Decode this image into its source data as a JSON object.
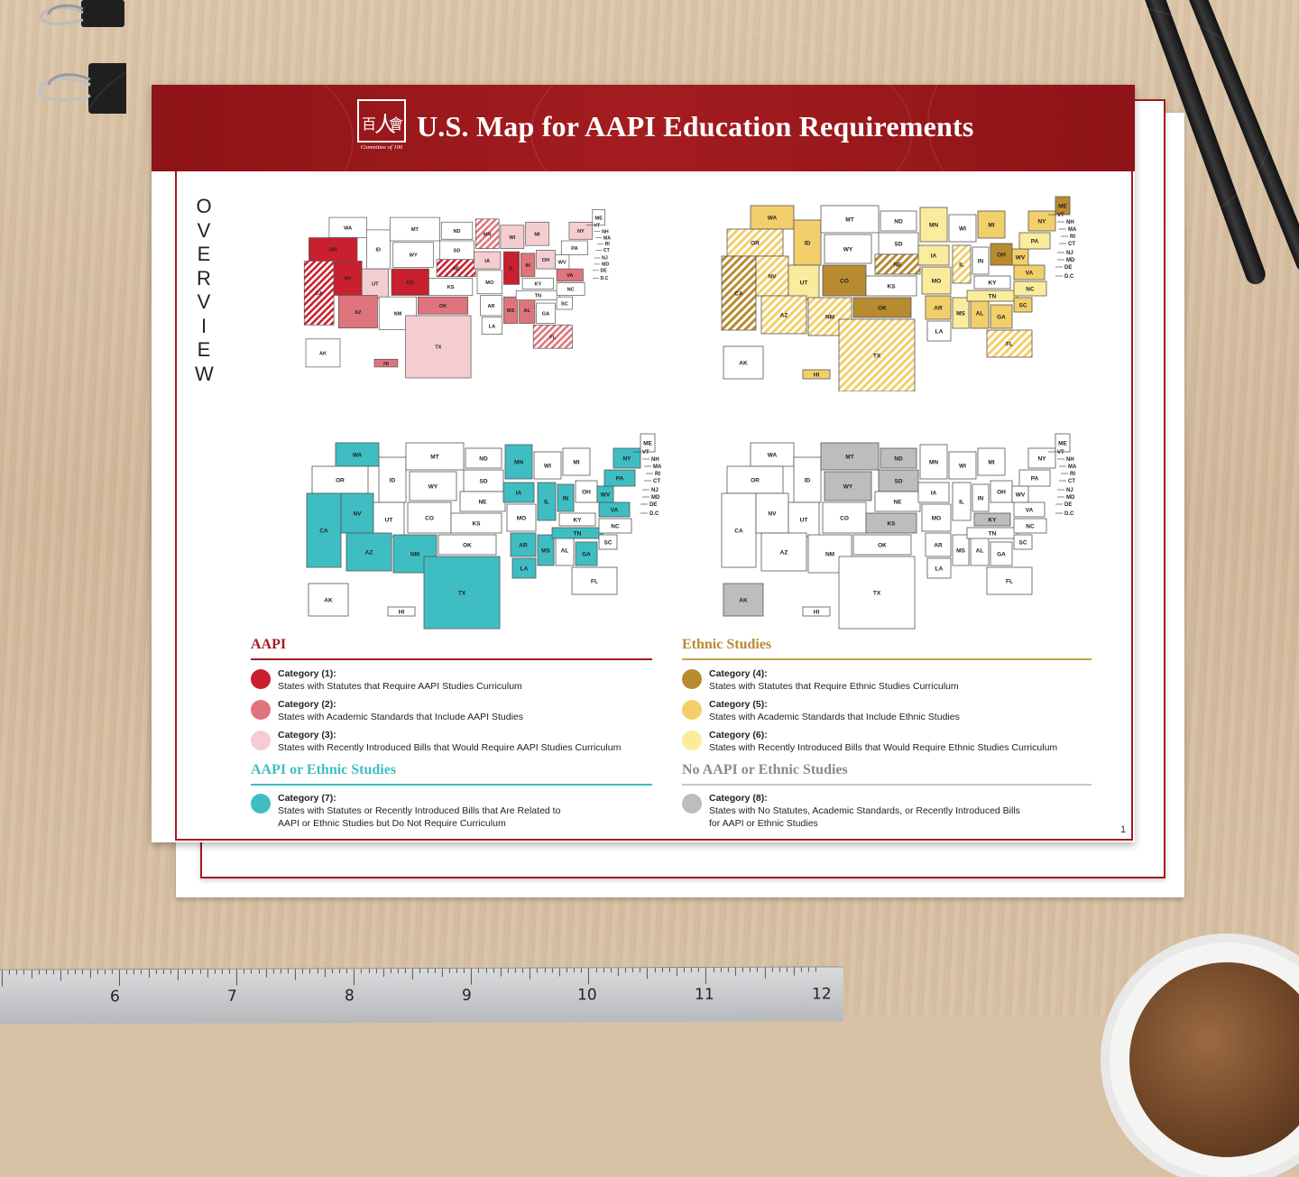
{
  "title": "U.S. Map for AAPI Education Requirements",
  "org_caption": "Committee of 100",
  "side_label": [
    "O",
    "V",
    "E",
    "R",
    "V",
    "I",
    "E",
    "W"
  ],
  "page_number": "1",
  "colors": {
    "brand": "#a31c20",
    "cat1": "#c8202e",
    "cat2": "#df747c",
    "cat3": "#f4cdd0",
    "cat4": "#b98b30",
    "cat5": "#f3cf6b",
    "cat6": "#fbeb9c",
    "cat7": "#3ebec2",
    "cat8": "#bdbdbd"
  },
  "legend": {
    "aapi": {
      "heading": "AAPI",
      "items": [
        {
          "head": "Category (1):",
          "text": "States with Statutes that Require AAPI Studies Curriculum"
        },
        {
          "head": "Category (2):",
          "text": "States with Academic Standards that Include AAPI Studies"
        },
        {
          "head": "Category (3):",
          "text": "States with Recently Introduced Bills that Would Require AAPI Studies Curriculum"
        }
      ]
    },
    "aapi_or_ethnic": {
      "heading": "AAPI or Ethnic Studies",
      "items": [
        {
          "head": "Category (7):",
          "text": "States with Statutes or Recently Introduced Bills that Are Related to",
          "text2": "AAPI or Ethnic Studies but Do Not Require Curriculum"
        }
      ]
    },
    "ethnic": {
      "heading": "Ethnic Studies",
      "items": [
        {
          "head": "Category (4):",
          "text": "States with Statutes that Require Ethnic Studies Curriculum"
        },
        {
          "head": "Category (5):",
          "text": "States with Academic Standards that Include Ethnic Studies"
        },
        {
          "head": "Category (6):",
          "text": "States with Recently Introduced Bills that Would Require Ethnic Studies Curriculum"
        }
      ]
    },
    "none": {
      "heading": "No AAPI or Ethnic Studies",
      "items": [
        {
          "head": "Category (8):",
          "text": "States with No Statutes, Academic Standards, or Recently Introduced Bills",
          "text2": "for AAPI or Ethnic Studies"
        }
      ]
    }
  },
  "ruler_numbers": [
    "6",
    "7",
    "8",
    "9",
    "10",
    "11",
    "12"
  ],
  "maps": [
    {
      "name": "aapi-map",
      "fills": {
        "WA": "#fff",
        "OR": "cat1",
        "CA": "cat1s",
        "NV": "cat1",
        "ID": "#fff",
        "MT": "#fff",
        "WY": "#fff",
        "UT": "cat3",
        "CO": "cat1",
        "AZ": "cat2",
        "NM": "#fff",
        "ND": "#fff",
        "SD": "#fff",
        "NE": "cat1s",
        "KS": "#fff",
        "OK": "cat2",
        "TX": "cat3",
        "MN": "cat2s",
        "IA": "cat3",
        "MO": "#fff",
        "AR": "#fff",
        "LA": "#fff",
        "WI": "cat3",
        "IL": "cat1",
        "MS": "cat2",
        "AL": "cat2",
        "MI": "cat3",
        "IN": "cat2",
        "OH": "cat3",
        "KY": "#fff",
        "TN": "#fff",
        "GA": "#fff",
        "FL": "cat2s",
        "SC": "#fff",
        "NC": "#fff",
        "VA": "cat2",
        "WV": "#fff",
        "PA": "#fff",
        "NY": "cat3",
        "ME": "#fff",
        "AK": "#fff",
        "HI": "cat2"
      }
    },
    {
      "name": "ethnic-map",
      "fills": {
        "WA": "cat5",
        "OR": "cat5s",
        "CA": "cat4s",
        "NV": "cat5s",
        "ID": "cat5",
        "MT": "#fff",
        "WY": "#fff",
        "UT": "cat6",
        "CO": "cat4",
        "AZ": "cat5s",
        "NM": "cat5s",
        "ND": "#fff",
        "SD": "#fff",
        "NE": "cat4s",
        "KS": "#fff",
        "OK": "cat4",
        "TX": "cat5s",
        "MN": "cat6",
        "IA": "cat6",
        "MO": "cat6",
        "AR": "cat5",
        "LA": "#fff",
        "WI": "#fff",
        "IL": "cat5s",
        "MS": "cat6",
        "AL": "cat5",
        "MI": "cat5",
        "IN": "#fff",
        "OH": "cat4",
        "KY": "#fff",
        "TN": "cat6",
        "GA": "cat5",
        "FL": "cat5s",
        "SC": "cat5",
        "NC": "cat6",
        "VA": "cat5",
        "WV": "cat5",
        "PA": "cat6",
        "NY": "cat5",
        "ME": "cat4",
        "AK": "#fff",
        "HI": "cat5"
      }
    },
    {
      "name": "aapi-or-ethnic-map",
      "fills": {
        "WA": "cat7",
        "OR": "#fff",
        "CA": "cat7",
        "NV": "cat7",
        "ID": "#fff",
        "MT": "#fff",
        "WY": "#fff",
        "UT": "#fff",
        "CO": "#fff",
        "AZ": "cat7",
        "NM": "cat7",
        "ND": "#fff",
        "SD": "#fff",
        "NE": "#fff",
        "KS": "#fff",
        "OK": "#fff",
        "TX": "cat7",
        "MN": "cat7",
        "IA": "cat7",
        "MO": "#fff",
        "AR": "cat7",
        "LA": "cat7",
        "WI": "#fff",
        "IL": "cat7",
        "MS": "cat7",
        "AL": "#fff",
        "MI": "#fff",
        "IN": "cat7",
        "OH": "#fff",
        "KY": "#fff",
        "TN": "cat7",
        "GA": "cat7",
        "FL": "#fff",
        "SC": "#fff",
        "NC": "#fff",
        "VA": "cat7",
        "WV": "cat7",
        "PA": "cat7",
        "NY": "cat7",
        "ME": "#fff",
        "AK": "#fff",
        "HI": "#fff"
      }
    },
    {
      "name": "no-studies-map",
      "fills": {
        "WA": "#fff",
        "OR": "#fff",
        "CA": "#fff",
        "NV": "#fff",
        "ID": "#fff",
        "MT": "cat8",
        "WY": "cat8",
        "UT": "#fff",
        "CO": "#fff",
        "AZ": "#fff",
        "NM": "#fff",
        "ND": "cat8",
        "SD": "cat8",
        "NE": "#fff",
        "KS": "cat8",
        "OK": "#fff",
        "TX": "#fff",
        "MN": "#fff",
        "IA": "#fff",
        "MO": "#fff",
        "AR": "#fff",
        "LA": "#fff",
        "WI": "#fff",
        "IL": "#fff",
        "MS": "#fff",
        "AL": "#fff",
        "MI": "#fff",
        "IN": "#fff",
        "OH": "#fff",
        "KY": "cat8",
        "TN": "#fff",
        "GA": "#fff",
        "FL": "#fff",
        "SC": "#fff",
        "NC": "#fff",
        "VA": "#fff",
        "WV": "#fff",
        "PA": "#fff",
        "NY": "#fff",
        "ME": "#fff",
        "AK": "cat8",
        "HI": "#fff"
      }
    }
  ],
  "state_labels": [
    "WA",
    "OR",
    "CA",
    "NV",
    "ID",
    "MT",
    "WY",
    "UT",
    "CO",
    "AZ",
    "NM",
    "ND",
    "SD",
    "NE",
    "KS",
    "OK",
    "TX",
    "MN",
    "IA",
    "MO",
    "AR",
    "LA",
    "WI",
    "IL",
    "MS",
    "AL",
    "MI",
    "IN",
    "OH",
    "KY",
    "TN",
    "GA",
    "FL",
    "SC",
    "NC",
    "VA",
    "WV",
    "PA",
    "NY",
    "ME",
    "AK",
    "HI"
  ],
  "ne_labels": [
    "VT",
    "NH",
    "MA",
    "RI",
    "CT",
    "NJ",
    "MD",
    "DE",
    "D.C"
  ]
}
